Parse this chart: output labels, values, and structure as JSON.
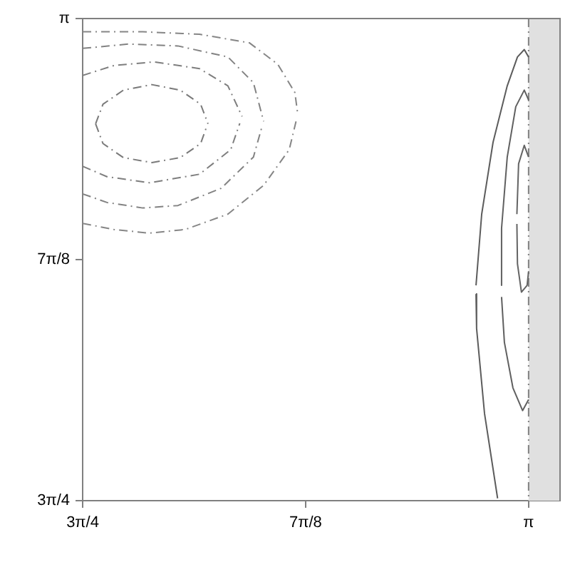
{
  "chart_data": {
    "type": "line",
    "xlim": [
      2.3562,
      3.197
    ],
    "ylim": [
      2.3562,
      3.1416
    ],
    "xticks": [
      {
        "value": 2.3562,
        "label": "3π/4"
      },
      {
        "value": 2.7489,
        "label": "7π/8"
      },
      {
        "value": 3.1416,
        "label": "π"
      }
    ],
    "yticks": [
      {
        "value": 2.3562,
        "label": "3π/4"
      },
      {
        "value": 2.7489,
        "label": "7π/8"
      },
      {
        "value": 3.1416,
        "label": "π"
      }
    ],
    "grid": false,
    "legend": false,
    "marker": "none",
    "bands": [
      {
        "axis": "x",
        "from": 3.1416,
        "to": 3.197,
        "color": "#e0e0e0"
      }
    ],
    "ref_lines": [
      {
        "axis": "x",
        "value": 3.1416,
        "color": "#808080",
        "line_style": "dashed"
      }
    ],
    "series": [
      {
        "color": "#7a7a7a",
        "line_style": "dashed",
        "x": [
          2.379,
          2.392,
          2.428,
          2.478,
          2.528,
          2.564,
          2.577
        ],
        "values": [
          2.97,
          3.002,
          3.025,
          3.034,
          3.025,
          3.002,
          2.97
        ]
      },
      {
        "color": "#7a7a7a",
        "line_style": "dashed",
        "x": [
          2.379,
          2.392,
          2.428,
          2.478,
          2.528,
          2.564,
          2.574
        ],
        "values": [
          2.97,
          2.938,
          2.915,
          2.907,
          2.915,
          2.938,
          2.964
        ]
      },
      {
        "color": "#7e7e7e",
        "line_style": "dashed",
        "x": [
          2.3562,
          2.411,
          2.482,
          2.562,
          2.612,
          2.637
        ],
        "values": [
          3.049,
          3.065,
          3.071,
          3.06,
          3.032,
          2.982
        ]
      },
      {
        "color": "#7e7e7e",
        "line_style": "dashed",
        "x": [
          2.3562,
          2.399,
          2.474,
          2.562,
          2.617,
          2.633
        ],
        "values": [
          2.901,
          2.884,
          2.874,
          2.888,
          2.928,
          2.971
        ]
      },
      {
        "color": "#828282",
        "line_style": "dashed",
        "x": [
          2.3562,
          2.437,
          2.524,
          2.612,
          2.657,
          2.675
        ],
        "values": [
          3.093,
          3.1,
          3.097,
          3.079,
          3.037,
          2.974
        ]
      },
      {
        "color": "#828282",
        "line_style": "dashed",
        "x": [
          2.3562,
          2.399,
          2.462,
          2.524,
          2.6,
          2.657,
          2.671
        ],
        "values": [
          2.856,
          2.842,
          2.833,
          2.837,
          2.865,
          2.916,
          2.962
        ]
      },
      {
        "color": "#868686",
        "line_style": "dashed",
        "x": [
          2.3562,
          2.462,
          2.562,
          2.65,
          2.7,
          2.73,
          2.735
        ],
        "values": [
          3.12,
          3.12,
          3.116,
          3.102,
          3.067,
          3.021,
          2.986
        ]
      },
      {
        "color": "#868686",
        "line_style": "dashed",
        "x": [
          2.3562,
          2.411,
          2.474,
          2.537,
          2.612,
          2.675,
          2.72,
          2.732
        ],
        "values": [
          2.808,
          2.798,
          2.792,
          2.798,
          2.823,
          2.87,
          2.928,
          2.974
        ]
      },
      {
        "color": "#5c5c5c",
        "line_style": "solid",
        "x": [
          3.049,
          3.059,
          3.079,
          3.104,
          3.122,
          3.134,
          3.1416
        ],
        "values": [
          2.707,
          2.823,
          2.94,
          3.032,
          3.079,
          3.091,
          3.079
        ]
      },
      {
        "color": "#5c5c5c",
        "line_style": "solid",
        "x": [
          3.049,
          3.05,
          3.064,
          3.087
        ],
        "values": [
          2.693,
          2.637,
          2.498,
          2.36
        ]
      },
      {
        "color": "#606060",
        "line_style": "solid",
        "x": [
          3.093,
          3.094,
          3.104,
          3.119,
          3.134,
          3.1416
        ],
        "values": [
          2.707,
          2.8,
          2.916,
          2.998,
          3.025,
          3.009
        ]
      },
      {
        "color": "#606060",
        "line_style": "solid",
        "x": [
          3.094,
          3.099,
          3.114,
          3.131,
          3.1416
        ],
        "values": [
          2.688,
          2.614,
          2.54,
          2.503,
          2.521
        ]
      },
      {
        "color": "#646464",
        "line_style": "solid",
        "x": [
          3.121,
          3.124,
          3.134,
          3.1416
        ],
        "values": [
          2.823,
          2.905,
          2.935,
          2.916
        ]
      },
      {
        "color": "#646464",
        "line_style": "solid",
        "x": [
          3.121,
          3.122,
          3.129,
          3.139,
          3.1416
        ],
        "values": [
          2.807,
          2.742,
          2.696,
          2.707,
          2.73
        ]
      }
    ]
  }
}
